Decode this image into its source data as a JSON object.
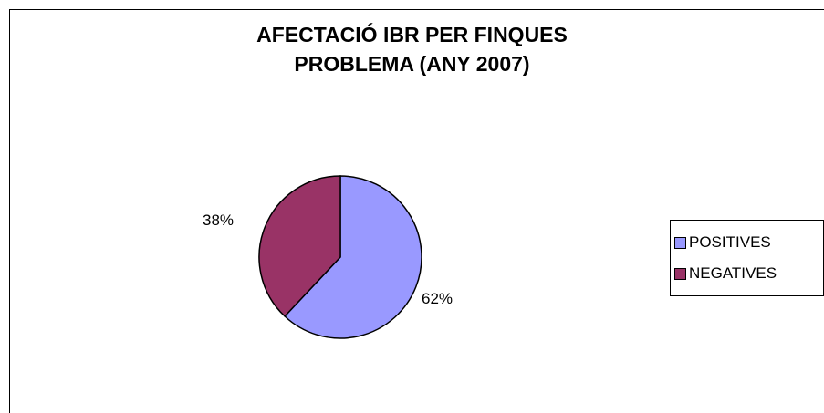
{
  "chart_data": {
    "type": "pie",
    "title_lines": [
      "AFECTACIÓ IBR PER FINQUES",
      "PROBLEMA (ANY 2007)"
    ],
    "slices": [
      {
        "name": "POSITIVES",
        "value": 62,
        "label": "62%",
        "color": "#9999ff"
      },
      {
        "name": "NEGATIVES",
        "value": 38,
        "label": "38%",
        "color": "#993366"
      }
    ],
    "start_angle": "12 o'clock, clockwise",
    "legend_position": "right"
  }
}
